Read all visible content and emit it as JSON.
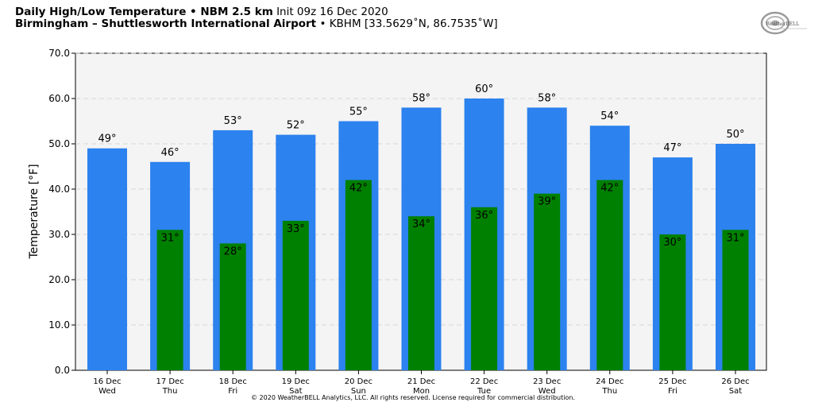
{
  "header": {
    "title_bold": "Daily High/Low Temperature • NBM 2.5 km",
    "title_light": "Init 09z 16 Dec 2020",
    "location_bold": "Birmingham – Shuttlesworth International Airport",
    "location_light": "• KBHM [33.5629˚N, 86.7535˚W]"
  },
  "logo": {
    "text": "WeatherBELL",
    "icon": "weatherbell-logo-icon"
  },
  "footer": {
    "copyright": "© 2020 WeatherBELL Analytics, LLC. All rights reserved. License required for commercial distribution."
  },
  "colors": {
    "high": "#2c82ee",
    "low": "#008000",
    "plot_bg": "#f4f4f4",
    "grid": "#cccccc"
  },
  "chart_data": {
    "type": "bar",
    "ylabel": "Temperature [°F]",
    "ylim": [
      0,
      70
    ],
    "yticks": [
      "0.0",
      "10.0",
      "20.0",
      "30.0",
      "40.0",
      "50.0",
      "60.0",
      "70.0"
    ],
    "grid": true,
    "categories": [
      {
        "date": "16 Dec",
        "day": "Wed"
      },
      {
        "date": "17 Dec",
        "day": "Thu"
      },
      {
        "date": "18 Dec",
        "day": "Fri"
      },
      {
        "date": "19 Dec",
        "day": "Sat"
      },
      {
        "date": "20 Dec",
        "day": "Sun"
      },
      {
        "date": "21 Dec",
        "day": "Mon"
      },
      {
        "date": "22 Dec",
        "day": "Tue"
      },
      {
        "date": "23 Dec",
        "day": "Wed"
      },
      {
        "date": "24 Dec",
        "day": "Thu"
      },
      {
        "date": "25 Dec",
        "day": "Fri"
      },
      {
        "date": "26 Dec",
        "day": "Sat"
      }
    ],
    "series": [
      {
        "values": [
          49,
          46,
          53,
          52,
          55,
          58,
          60,
          58,
          54,
          47,
          50
        ],
        "labels": [
          "49°",
          "46°",
          "53°",
          "52°",
          "55°",
          "58°",
          "60°",
          "58°",
          "54°",
          "47°",
          "50°"
        ]
      },
      {
        "values": [
          null,
          31,
          28,
          33,
          42,
          34,
          36,
          39,
          42,
          30,
          31
        ],
        "labels": [
          "",
          "31°",
          "28°",
          "33°",
          "42°",
          "34°",
          "36°",
          "39°",
          "42°",
          "30°",
          "31°"
        ]
      }
    ]
  }
}
